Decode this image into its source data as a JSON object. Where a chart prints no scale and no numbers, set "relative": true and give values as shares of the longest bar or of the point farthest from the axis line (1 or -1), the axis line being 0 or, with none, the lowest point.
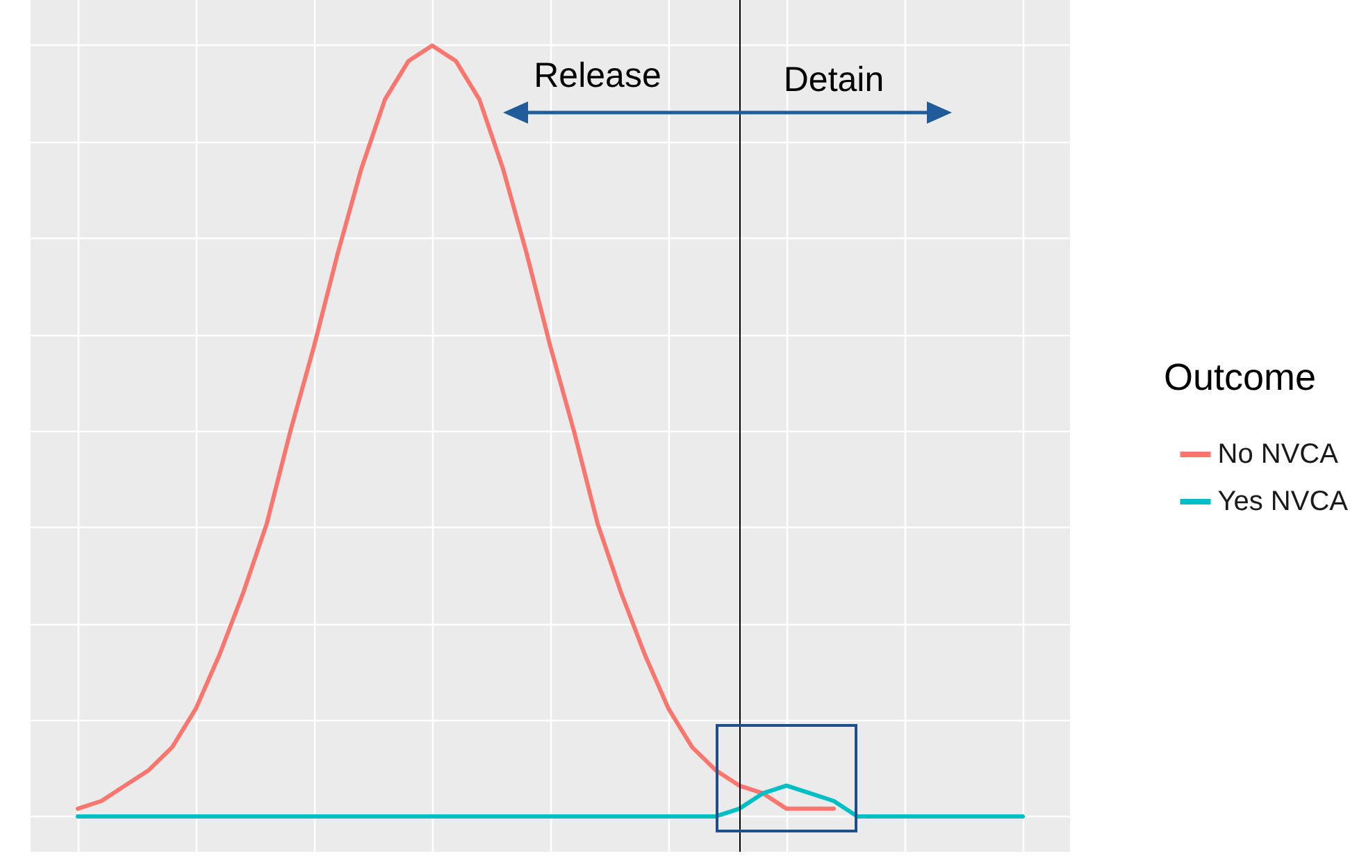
{
  "chart_data": {
    "type": "line",
    "relative": true,
    "legend_title": "Outcome",
    "legend": "right",
    "grid": "xy",
    "marker": "none",
    "line_style": "solid",
    "categories": [
      null,
      null,
      null,
      null,
      null,
      null,
      null,
      null,
      null,
      null,
      null,
      null,
      null,
      null,
      null,
      null,
      null,
      null,
      null,
      null,
      null,
      null,
      null,
      null,
      null,
      null,
      null,
      null,
      null,
      null,
      null,
      null,
      null,
      null,
      null,
      null,
      null,
      null,
      null,
      null,
      null,
      null,
      null,
      null,
      null
    ],
    "series": [
      {
        "name": "No NVCA",
        "color": "#f8766d",
        "values": [
          null,
          null,
          0.01,
          0.02,
          0.04,
          0.06,
          0.09,
          0.14,
          0.21,
          0.29,
          0.38,
          0.5,
          0.61,
          0.73,
          0.84,
          0.93,
          0.98,
          1,
          0.98,
          0.93,
          0.84,
          0.73,
          0.61,
          0.5,
          0.38,
          0.29,
          0.21,
          0.14,
          0.09,
          0.06,
          0.04,
          0.03,
          0.01,
          0.01,
          0.01,
          null,
          null,
          null,
          null,
          null,
          null,
          null,
          null,
          null,
          null
        ]
      },
      {
        "name": "Yes NVCA",
        "color": "#00bfc4",
        "values": [
          null,
          null,
          0,
          0,
          0,
          0,
          0,
          0,
          0,
          0,
          0,
          0,
          0,
          0,
          0,
          0,
          0,
          0,
          0,
          0,
          0,
          0,
          0,
          0,
          0,
          0,
          0,
          0,
          0,
          0,
          0.01,
          0.03,
          0.04,
          0.03,
          0.02,
          0,
          0,
          0,
          0,
          0,
          0,
          0,
          0,
          null,
          null
        ]
      }
    ],
    "ref_lines": [
      {
        "axis": "x",
        "color": "#000000"
      }
    ],
    "annotations": [
      "Release",
      "Detain"
    ]
  }
}
